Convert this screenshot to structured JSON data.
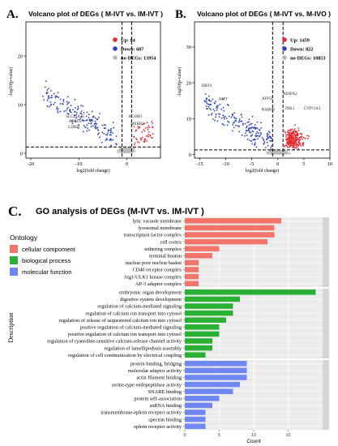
{
  "chart_data": [
    {
      "panel": "A.",
      "type": "scatter",
      "title": "Volcano plot of DEGs ( M-IVT vs. IM-IVT )",
      "xlabel": "log2(fold change)",
      "ylabel": "-log10(p-value)",
      "xlim": [
        -21,
        7
      ],
      "ylim": [
        -1,
        27
      ],
      "x_ticks": [
        -20,
        -10,
        0
      ],
      "y_ticks": [
        0,
        10,
        20
      ],
      "legend": [
        {
          "name": "Up: 84",
          "color": "#e8262b"
        },
        {
          "name": "Down: 607",
          "color": "#2a3fbd"
        },
        {
          "name": "no-DEGs: 13954",
          "color": "#b9b9b9"
        }
      ],
      "thresholds": {
        "x": [
          -1,
          1
        ],
        "y": 1.3
      },
      "gene_labels": [
        {
          "text": "SLC25A45",
          "x": -12.7,
          "y": 7.3
        },
        {
          "text": "ABCD1",
          "x": -12.1,
          "y": 6.3
        },
        {
          "text": "LDHD",
          "x": -12.2,
          "y": 5.2
        },
        {
          "text": "ACSM3",
          "x": 0.3,
          "y": 7.3
        },
        {
          "text": "MSRB3",
          "x": 0.8,
          "y": 5.8
        }
      ]
    },
    {
      "panel": "B.",
      "type": "scatter",
      "title": "Volcano plot of DEGs ( M-IVT vs. M-IVO )",
      "xlabel": "log2(fold change)",
      "ylabel": "-log10(p-value)",
      "xlim": [
        -16,
        10
      ],
      "ylim": [
        -1,
        37
      ],
      "x_ticks": [
        -15,
        -10,
        -5,
        0,
        5,
        10
      ],
      "y_ticks": [
        0,
        10,
        20,
        30
      ],
      "legend": [
        {
          "name": "Up: 1459",
          "color": "#e8262b"
        },
        {
          "name": "Down: 822",
          "color": "#2a3fbd"
        },
        {
          "name": "no-DEGs: 10853",
          "color": "#b9b9b9"
        }
      ],
      "thresholds": {
        "x": [
          -1,
          1
        ],
        "y": 1.3
      },
      "gene_labels": [
        {
          "text": "SIRT4",
          "x": -14.7,
          "y": 18.9
        },
        {
          "text": "AMT",
          "x": -11.4,
          "y": 15.2
        },
        {
          "text": "ATP5J",
          "x": -3.1,
          "y": 15.3
        },
        {
          "text": "RAB6B",
          "x": -3.1,
          "y": 12.2
        },
        {
          "text": "ADIFA2",
          "x": 1.0,
          "y": 16.6
        },
        {
          "text": "JNK1",
          "x": 1.4,
          "y": 12.6
        },
        {
          "text": "CYP11A1",
          "x": 5.0,
          "y": 12.6
        }
      ]
    },
    {
      "panel": "C.",
      "type": "bar",
      "orientation": "horizontal",
      "title": "GO analysis of DEGs (M-IVT vs. IM-IVT )",
      "xlabel": "Count",
      "ylabel": "Description",
      "xlim": [
        0,
        20
      ],
      "x_ticks": [
        0,
        5,
        10,
        15
      ],
      "legend_title": "Ontology",
      "legend": [
        {
          "name": "cellular compoment",
          "color": "#f2756c"
        },
        {
          "name": "biological process",
          "color": "#2ab034"
        },
        {
          "name": "molecular function",
          "color": "#6f87f0"
        }
      ],
      "groups": [
        {
          "ontology": "cellular compoment",
          "color": "#f2756c",
          "categories": [
            "lytic vacuole membrane",
            "lysosomal membrane",
            "transcription factor complex",
            "cell cortex",
            "tethering complex",
            "terminal bouton",
            "nuclear pore nuclear basket",
            "CD40 receptor complex",
            "Atg1/ULK1 kinase complex",
            "AP-3 adaptor complex"
          ],
          "values": [
            14,
            13,
            13,
            12,
            5,
            4,
            2,
            2,
            2,
            2
          ]
        },
        {
          "ontology": "biological process",
          "color": "#2ab034",
          "categories": [
            "embryonic organ development",
            "digestive system development",
            "regulation of calcium-mediated signaling",
            "regulation of calcium ion transport into cytosol",
            "regulation of release of sequestered calcium ion into cytosol",
            "positive regulation of calcium-mediated signaling",
            "positive regulation of calcium ion transport into cytosol",
            "regulation of ryanodine-sensitive calcium-release channel activity",
            "regulation of lamellipodium assembly",
            "regulation of cell communication by electrical coupling"
          ],
          "values": [
            19,
            8,
            7,
            7,
            6,
            5,
            5,
            4,
            4,
            3
          ]
        },
        {
          "ontology": "molecular function",
          "color": "#6f87f0",
          "categories": [
            "protein binding, bridging",
            "molecular adaptor activity",
            "actin filament binding",
            "serine-type endopeptidase activity",
            "SNARE binding",
            "protein self-association",
            "snRNA binding",
            "transmembrane-ephrin receptor activity",
            "spectrin binding",
            "ephrin receptor activity"
          ],
          "values": [
            9,
            9,
            9,
            8,
            7,
            5,
            4,
            3,
            3,
            3
          ]
        }
      ]
    }
  ]
}
